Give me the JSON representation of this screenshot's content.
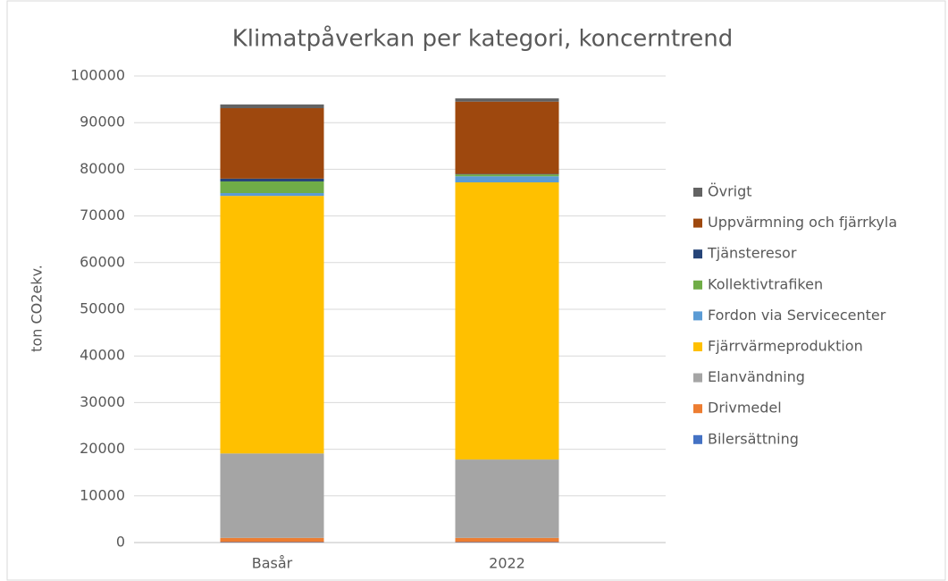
{
  "chart_data": {
    "type": "stacked_bar",
    "title": "Klimatpåverkan per kategori, koncerntrend",
    "y_label": "ton CO2ekv.",
    "categories": [
      "Basår",
      "2022"
    ],
    "series": [
      {
        "name": "Bilersättning",
        "color": "#4472c4",
        "values": [
          100,
          100
        ]
      },
      {
        "name": "Drivmedel",
        "color": "#ed7d31",
        "values": [
          900,
          900
        ]
      },
      {
        "name": "Elanvändning",
        "color": "#a5a5a5",
        "values": [
          18100,
          16800
        ]
      },
      {
        "name": "Fjärrvärmeproduktion",
        "color": "#ffc000",
        "values": [
          55200,
          59400
        ]
      },
      {
        "name": "Fordon via Servicecenter",
        "color": "#5b9bd5",
        "values": [
          600,
          1300
        ]
      },
      {
        "name": "Kollektivtrafiken",
        "color": "#70ad47",
        "values": [
          2500,
          400
        ]
      },
      {
        "name": "Tjänsteresor",
        "color": "#264478",
        "values": [
          600,
          100
        ]
      },
      {
        "name": "Uppvärmning och fjärrkyla",
        "color": "#9e480e",
        "values": [
          15100,
          15500
        ]
      },
      {
        "name": "Övrigt",
        "color": "#636363",
        "values": [
          800,
          700
        ]
      }
    ],
    "ylim": [
      0,
      100000
    ],
    "yticks": [
      0,
      10000,
      20000,
      30000,
      40000,
      50000,
      60000,
      70000,
      80000,
      90000,
      100000
    ],
    "grid": true,
    "legend": "right"
  }
}
